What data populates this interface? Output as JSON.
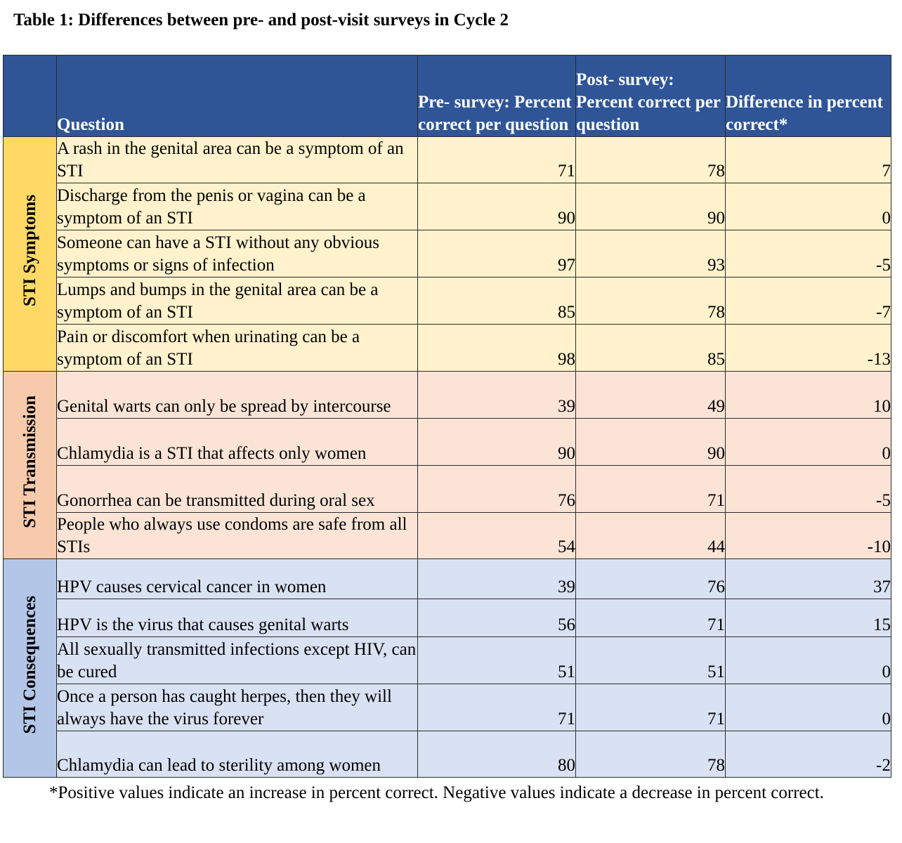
{
  "title": "Table 1: Differences between pre- and post-visit surveys in Cycle 2",
  "headers": {
    "question": "Question",
    "pre": "Pre- survey: Percent correct per question",
    "post": "Post- survey: Percent correct per question",
    "diff": "Difference in percent correct*"
  },
  "groups": [
    {
      "label": "STI Symptoms",
      "rows": [
        {
          "question": "A rash in the genital area can be a symptom of an STI",
          "pre": "71",
          "post": "78",
          "diff": "7"
        },
        {
          "question": "Discharge from the penis or vagina can be a symptom of an STI",
          "pre": "90",
          "post": "90",
          "diff": "0"
        },
        {
          "question": "Someone can have a STI without any obvious symptoms or signs of infection",
          "pre": "97",
          "post": "93",
          "diff": "-5"
        },
        {
          "question": "Lumps and bumps in the genital area can be a symptom of an STI",
          "pre": "85",
          "post": "78",
          "diff": "-7"
        },
        {
          "question": "Pain or discomfort when urinating can be a symptom of an STI",
          "pre": "98",
          "post": "85",
          "diff": "-13"
        }
      ]
    },
    {
      "label": "STI Transmission",
      "rows": [
        {
          "question": "Genital warts can only be spread by intercourse",
          "pre": "39",
          "post": "49",
          "diff": "10"
        },
        {
          "question": "Chlamydia is a STI that affects only women",
          "pre": "90",
          "post": "90",
          "diff": "0"
        },
        {
          "question": "Gonorrhea can be transmitted during oral sex",
          "pre": "76",
          "post": "71",
          "diff": "-5"
        },
        {
          "question": "People who always use condoms are safe from all STIs",
          "pre": "54",
          "post": "44",
          "diff": "-10"
        }
      ]
    },
    {
      "label": "STI Consequences",
      "rows": [
        {
          "question": "HPV causes cervical cancer in women",
          "pre": "39",
          "post": "76",
          "diff": "37"
        },
        {
          "question": "HPV is the virus that causes genital warts",
          "pre": "56",
          "post": "71",
          "diff": "15"
        },
        {
          "question": "All sexually transmitted infections except HIV, can be cured",
          "pre": "51",
          "post": "51",
          "diff": "0"
        },
        {
          "question": "Once a person has caught herpes, then they will always have the virus forever",
          "pre": "71",
          "post": "71",
          "diff": "0"
        },
        {
          "question": "Chlamydia can lead to sterility among women",
          "pre": "80",
          "post": "78",
          "diff": "-2"
        }
      ]
    }
  ],
  "footnote": "*Positive values indicate an increase in percent correct. Negative values indicate a decrease in percent correct.",
  "colors": {
    "header_bg": "#2f5597",
    "symptoms_label_bg": "#ffd966",
    "symptoms_row_bg": "#fff2cc",
    "transmission_label_bg": "#f7caac",
    "transmission_row_bg": "#fbe4d6",
    "consequences_label_bg": "#b4c6e7",
    "consequences_row_bg": "#d9e2f3"
  }
}
